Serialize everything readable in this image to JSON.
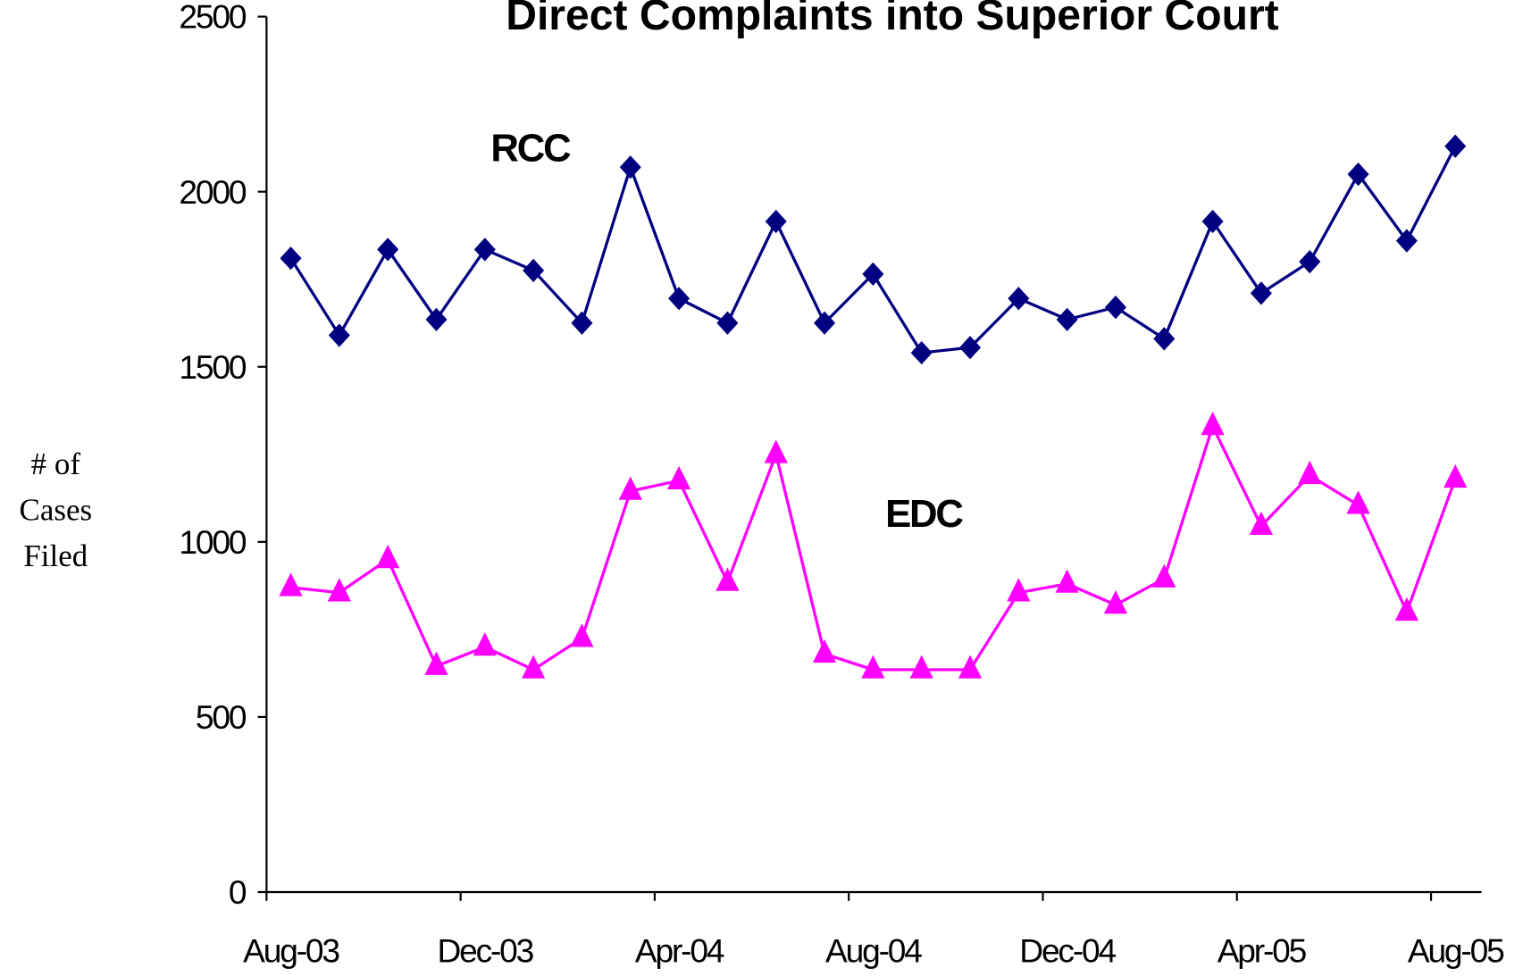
{
  "chart_data": {
    "type": "line",
    "title": "Direct Complaints into Superior Court",
    "y_label": [
      "# of",
      "Cases",
      "Filed"
    ],
    "categories": [
      "Aug-03",
      null,
      null,
      null,
      "Dec-03",
      null,
      null,
      null,
      "Apr-04",
      null,
      null,
      null,
      "Aug-04",
      null,
      null,
      null,
      "Dec-04",
      null,
      null,
      null,
      "Apr-05",
      null,
      null,
      null,
      "Aug-05"
    ],
    "series": [
      {
        "name": "RCC",
        "color": "#000080",
        "marker": "diamond",
        "values": [
          1810,
          1590,
          1835,
          1635,
          1835,
          1775,
          1625,
          2070,
          1695,
          1625,
          1915,
          1625,
          1765,
          1540,
          1555,
          1695,
          1635,
          1670,
          1580,
          1915,
          1710,
          1800,
          2050,
          1860,
          2130
        ]
      },
      {
        "name": "EDC",
        "color": "#ff00ff",
        "marker": "triangle",
        "values": [
          870,
          855,
          950,
          645,
          700,
          635,
          725,
          1145,
          1175,
          885,
          1250,
          680,
          635,
          635,
          635,
          855,
          880,
          820,
          895,
          1330,
          1045,
          1190,
          1105,
          800,
          1180
        ]
      }
    ],
    "ylim": [
      0,
      2500
    ],
    "yticks": [
      0,
      500,
      1000,
      1500,
      2000,
      2500
    ],
    "grid": false
  }
}
